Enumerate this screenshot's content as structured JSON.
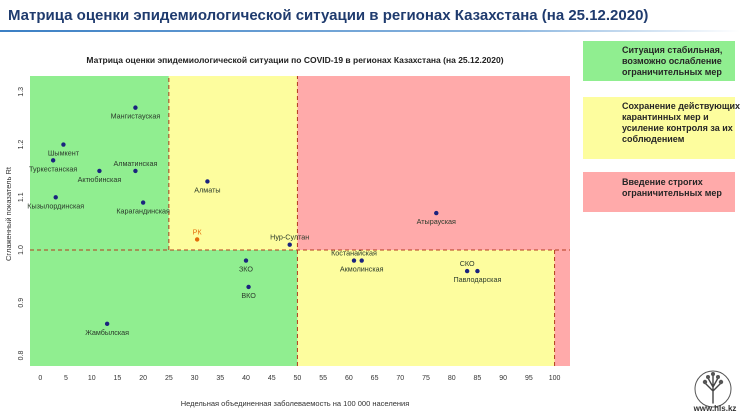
{
  "slide": {
    "title": "Матрица оценки эпидемиологической ситуации в регионах Казахстана (на 25.12.2020)"
  },
  "legend": [
    {
      "text": "Ситуация стабильная,\nвозможно ослабление\nограничительных мер",
      "color": "#90ee90"
    },
    {
      "text": "Сохранение действующих\nкарантинных мер и\nусиление контроля за их\nсоблюдением",
      "color": "#fdfd9e"
    },
    {
      "text": "Введение строгих\nограничительных мер",
      "color": "#ffaaaa"
    }
  ],
  "logo": {
    "url": "www.hls.kz",
    "icon": "tree-icon"
  },
  "chart_data": {
    "type": "scatter",
    "title": "Матрица оценки эпидемиологической ситуации по COVID-19 в регионах Казахстана (на 25.12.2020)",
    "xlabel": "Недельная объединенная заболеваемость на 100 000 населения",
    "ylabel": "Сглаженный показатель Rt",
    "xlim": [
      -2,
      103
    ],
    "ylim": [
      0.78,
      1.33
    ],
    "xticks": [
      0,
      5,
      10,
      15,
      20,
      25,
      30,
      35,
      40,
      45,
      50,
      55,
      60,
      65,
      70,
      75,
      80,
      85,
      90,
      95,
      100
    ],
    "yticks": [
      0.8,
      0.9,
      1.0,
      1.1,
      1.2,
      1.3
    ],
    "ytick_labels": [
      "0.8",
      "0.9",
      "1.0",
      "1.1",
      "1.2",
      "1.3"
    ],
    "zones": [
      {
        "x0": -2,
        "x1": 25,
        "y0": 1.0,
        "y1": 1.33,
        "color": "#90ee90"
      },
      {
        "x0": 25,
        "x1": 50,
        "y0": 1.0,
        "y1": 1.33,
        "color": "#fdfd9e"
      },
      {
        "x0": 50,
        "x1": 103,
        "y0": 1.0,
        "y1": 1.33,
        "color": "#ffaaaa"
      },
      {
        "x0": -2,
        "x1": 50,
        "y0": 0.78,
        "y1": 1.0,
        "color": "#90ee90"
      },
      {
        "x0": 50,
        "x1": 100,
        "y0": 0.78,
        "y1": 1.0,
        "color": "#fdfd9e"
      },
      {
        "x0": 100,
        "x1": 103,
        "y0": 0.78,
        "y1": 1.0,
        "color": "#ffaaaa"
      }
    ],
    "threshold_lines": [
      {
        "axis": "x",
        "value": 25,
        "from": 1.0,
        "to": 1.33
      },
      {
        "axis": "x",
        "value": 50,
        "from": 0.78,
        "to": 1.33
      },
      {
        "axis": "x",
        "value": 100,
        "from": 0.78,
        "to": 1.0
      },
      {
        "axis": "y",
        "value": 1.0,
        "from": -2,
        "to": 103
      }
    ],
    "point_color": "#1a237e",
    "points": [
      {
        "label": "Мангистауская",
        "x": 18.5,
        "y": 1.27,
        "label_pos": "below"
      },
      {
        "label": "Шымкент",
        "x": 4.5,
        "y": 1.2,
        "label_pos": "below"
      },
      {
        "label": "Туркестанская",
        "x": 2.5,
        "y": 1.17,
        "label_pos": "below"
      },
      {
        "label": "Алматинская",
        "x": 18.5,
        "y": 1.15,
        "label_pos": "above"
      },
      {
        "label": "Актюбинская",
        "x": 11.5,
        "y": 1.15,
        "label_pos": "below"
      },
      {
        "label": "Кызылординская",
        "x": 3.0,
        "y": 1.1,
        "label_pos": "below"
      },
      {
        "label": "Карагандинская",
        "x": 20.0,
        "y": 1.09,
        "label_pos": "below"
      },
      {
        "label": "Алматы",
        "x": 32.5,
        "y": 1.13,
        "label_pos": "below"
      },
      {
        "label": "РК",
        "x": 30.5,
        "y": 1.02,
        "label_pos": "above",
        "color": "#e36c0a",
        "label_color": "#e36c0a"
      },
      {
        "label": "Нур-Султан",
        "x": 48.5,
        "y": 1.01,
        "label_pos": "above"
      },
      {
        "label": "ЗКО",
        "x": 40.0,
        "y": 0.98,
        "label_pos": "below"
      },
      {
        "label": "ВКО",
        "x": 40.5,
        "y": 0.93,
        "label_pos": "below"
      },
      {
        "label": "Жамбылская",
        "x": 13.0,
        "y": 0.86,
        "label_pos": "below"
      },
      {
        "label": "Атырауская",
        "x": 77.0,
        "y": 1.07,
        "label_pos": "below"
      },
      {
        "label": "Костанайская",
        "x": 61.0,
        "y": 0.98,
        "label_pos": "above"
      },
      {
        "label": "Акмолинская",
        "x": 62.5,
        "y": 0.98,
        "label_pos": "below"
      },
      {
        "label": "СКО",
        "x": 83.0,
        "y": 0.96,
        "label_pos": "above"
      },
      {
        "label": "Павлодарская",
        "x": 85.0,
        "y": 0.96,
        "label_pos": "below"
      }
    ]
  }
}
